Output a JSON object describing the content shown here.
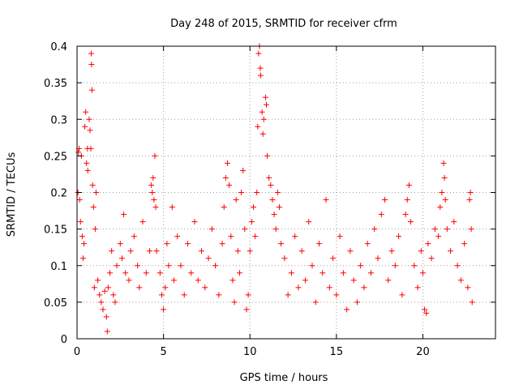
{
  "chart_data": {
    "type": "scatter",
    "title": "Day 248 of 2015, SRMTID for receiver cfrm",
    "xlabel": "GPS time / hours",
    "ylabel": "SRMTID / TECUs",
    "xlim": [
      0,
      24.2
    ],
    "ylim": [
      0,
      0.4
    ],
    "x_ticks": [
      0,
      5,
      10,
      15,
      20
    ],
    "x_tick_labels": [
      "0",
      "5",
      "10",
      "15",
      "20"
    ],
    "y_ticks": [
      0,
      0.05,
      0.1,
      0.15,
      0.2,
      0.25,
      0.3,
      0.35,
      0.4
    ],
    "y_tick_labels": [
      "0",
      "0.05",
      "0.1",
      "0.15",
      "0.2",
      "0.25",
      "0.3",
      "0.35",
      "0.4"
    ],
    "grid": true,
    "marker": "+",
    "color": "#ff0000",
    "series": [
      {
        "name": "SRMTID",
        "points": [
          [
            0.05,
            0.2
          ],
          [
            0.08,
            0.255
          ],
          [
            0.12,
            0.26
          ],
          [
            0.15,
            0.19
          ],
          [
            0.2,
            0.16
          ],
          [
            0.25,
            0.25
          ],
          [
            0.3,
            0.14
          ],
          [
            0.35,
            0.11
          ],
          [
            0.4,
            0.13
          ],
          [
            0.45,
            0.29
          ],
          [
            0.5,
            0.31
          ],
          [
            0.55,
            0.24
          ],
          [
            0.6,
            0.26
          ],
          [
            0.62,
            0.23
          ],
          [
            0.7,
            0.3
          ],
          [
            0.75,
            0.285
          ],
          [
            0.8,
            0.26
          ],
          [
            0.82,
            0.39
          ],
          [
            0.84,
            0.375
          ],
          [
            0.86,
            0.34
          ],
          [
            0.9,
            0.21
          ],
          [
            0.95,
            0.18
          ],
          [
            1.0,
            0.07
          ],
          [
            1.05,
            0.15
          ],
          [
            1.1,
            0.2
          ],
          [
            1.2,
            0.08
          ],
          [
            1.3,
            0.06
          ],
          [
            1.4,
            0.05
          ],
          [
            1.5,
            0.04
          ],
          [
            1.6,
            0.065
          ],
          [
            1.7,
            0.03
          ],
          [
            1.75,
            0.01
          ],
          [
            1.8,
            0.07
          ],
          [
            1.9,
            0.09
          ],
          [
            2.0,
            0.12
          ],
          [
            2.1,
            0.06
          ],
          [
            2.2,
            0.05
          ],
          [
            2.3,
            0.1
          ],
          [
            2.5,
            0.13
          ],
          [
            2.6,
            0.11
          ],
          [
            2.7,
            0.17
          ],
          [
            2.8,
            0.09
          ],
          [
            3.0,
            0.08
          ],
          [
            3.1,
            0.12
          ],
          [
            3.3,
            0.14
          ],
          [
            3.5,
            0.1
          ],
          [
            3.6,
            0.07
          ],
          [
            3.8,
            0.16
          ],
          [
            4.0,
            0.09
          ],
          [
            4.2,
            0.12
          ],
          [
            4.3,
            0.21
          ],
          [
            4.35,
            0.2
          ],
          [
            4.4,
            0.22
          ],
          [
            4.45,
            0.19
          ],
          [
            4.5,
            0.25
          ],
          [
            4.55,
            0.18
          ],
          [
            4.6,
            0.12
          ],
          [
            4.8,
            0.09
          ],
          [
            4.9,
            0.06
          ],
          [
            5.0,
            0.04
          ],
          [
            5.1,
            0.07
          ],
          [
            5.2,
            0.13
          ],
          [
            5.3,
            0.1
          ],
          [
            5.5,
            0.18
          ],
          [
            5.6,
            0.08
          ],
          [
            5.8,
            0.14
          ],
          [
            6.0,
            0.1
          ],
          [
            6.2,
            0.06
          ],
          [
            6.4,
            0.13
          ],
          [
            6.6,
            0.09
          ],
          [
            6.8,
            0.16
          ],
          [
            7.0,
            0.08
          ],
          [
            7.2,
            0.12
          ],
          [
            7.4,
            0.07
          ],
          [
            7.6,
            0.11
          ],
          [
            7.8,
            0.15
          ],
          [
            8.0,
            0.1
          ],
          [
            8.2,
            0.06
          ],
          [
            8.4,
            0.13
          ],
          [
            8.5,
            0.18
          ],
          [
            8.6,
            0.22
          ],
          [
            8.7,
            0.24
          ],
          [
            8.8,
            0.21
          ],
          [
            8.9,
            0.14
          ],
          [
            9.0,
            0.08
          ],
          [
            9.1,
            0.05
          ],
          [
            9.2,
            0.19
          ],
          [
            9.3,
            0.12
          ],
          [
            9.4,
            0.09
          ],
          [
            9.5,
            0.2
          ],
          [
            9.6,
            0.23
          ],
          [
            9.7,
            0.15
          ],
          [
            9.8,
            0.04
          ],
          [
            9.9,
            0.06
          ],
          [
            10.0,
            0.12
          ],
          [
            10.1,
            0.16
          ],
          [
            10.2,
            0.18
          ],
          [
            10.3,
            0.14
          ],
          [
            10.4,
            0.2
          ],
          [
            10.45,
            0.29
          ],
          [
            10.5,
            0.39
          ],
          [
            10.55,
            0.4
          ],
          [
            10.6,
            0.37
          ],
          [
            10.62,
            0.36
          ],
          [
            10.7,
            0.31
          ],
          [
            10.75,
            0.28
          ],
          [
            10.8,
            0.3
          ],
          [
            10.9,
            0.33
          ],
          [
            10.95,
            0.32
          ],
          [
            11.0,
            0.25
          ],
          [
            11.1,
            0.22
          ],
          [
            11.2,
            0.21
          ],
          [
            11.3,
            0.19
          ],
          [
            11.4,
            0.17
          ],
          [
            11.5,
            0.15
          ],
          [
            11.6,
            0.2
          ],
          [
            11.7,
            0.18
          ],
          [
            11.8,
            0.13
          ],
          [
            12.0,
            0.11
          ],
          [
            12.2,
            0.06
          ],
          [
            12.4,
            0.09
          ],
          [
            12.6,
            0.14
          ],
          [
            12.8,
            0.07
          ],
          [
            13.0,
            0.12
          ],
          [
            13.2,
            0.08
          ],
          [
            13.4,
            0.16
          ],
          [
            13.6,
            0.1
          ],
          [
            13.8,
            0.05
          ],
          [
            14.0,
            0.13
          ],
          [
            14.2,
            0.09
          ],
          [
            14.4,
            0.19
          ],
          [
            14.6,
            0.07
          ],
          [
            14.8,
            0.11
          ],
          [
            15.0,
            0.06
          ],
          [
            15.2,
            0.14
          ],
          [
            15.4,
            0.09
          ],
          [
            15.6,
            0.04
          ],
          [
            15.8,
            0.12
          ],
          [
            16.0,
            0.08
          ],
          [
            16.2,
            0.05
          ],
          [
            16.4,
            0.1
          ],
          [
            16.6,
            0.07
          ],
          [
            16.8,
            0.13
          ],
          [
            17.0,
            0.09
          ],
          [
            17.2,
            0.15
          ],
          [
            17.4,
            0.11
          ],
          [
            17.6,
            0.17
          ],
          [
            17.8,
            0.19
          ],
          [
            18.0,
            0.08
          ],
          [
            18.2,
            0.12
          ],
          [
            18.4,
            0.1
          ],
          [
            18.6,
            0.14
          ],
          [
            18.8,
            0.06
          ],
          [
            19.0,
            0.17
          ],
          [
            19.1,
            0.19
          ],
          [
            19.2,
            0.21
          ],
          [
            19.3,
            0.16
          ],
          [
            19.5,
            0.1
          ],
          [
            19.7,
            0.07
          ],
          [
            19.9,
            0.12
          ],
          [
            20.0,
            0.09
          ],
          [
            20.1,
            0.04
          ],
          [
            20.2,
            0.035
          ],
          [
            20.3,
            0.13
          ],
          [
            20.5,
            0.11
          ],
          [
            20.7,
            0.15
          ],
          [
            20.9,
            0.14
          ],
          [
            21.0,
            0.18
          ],
          [
            21.1,
            0.2
          ],
          [
            21.2,
            0.24
          ],
          [
            21.25,
            0.22
          ],
          [
            21.3,
            0.19
          ],
          [
            21.4,
            0.15
          ],
          [
            21.6,
            0.12
          ],
          [
            21.8,
            0.16
          ],
          [
            22.0,
            0.1
          ],
          [
            22.2,
            0.08
          ],
          [
            22.4,
            0.13
          ],
          [
            22.6,
            0.07
          ],
          [
            22.7,
            0.19
          ],
          [
            22.75,
            0.2
          ],
          [
            22.8,
            0.15
          ],
          [
            22.85,
            0.05
          ]
        ]
      }
    ]
  }
}
